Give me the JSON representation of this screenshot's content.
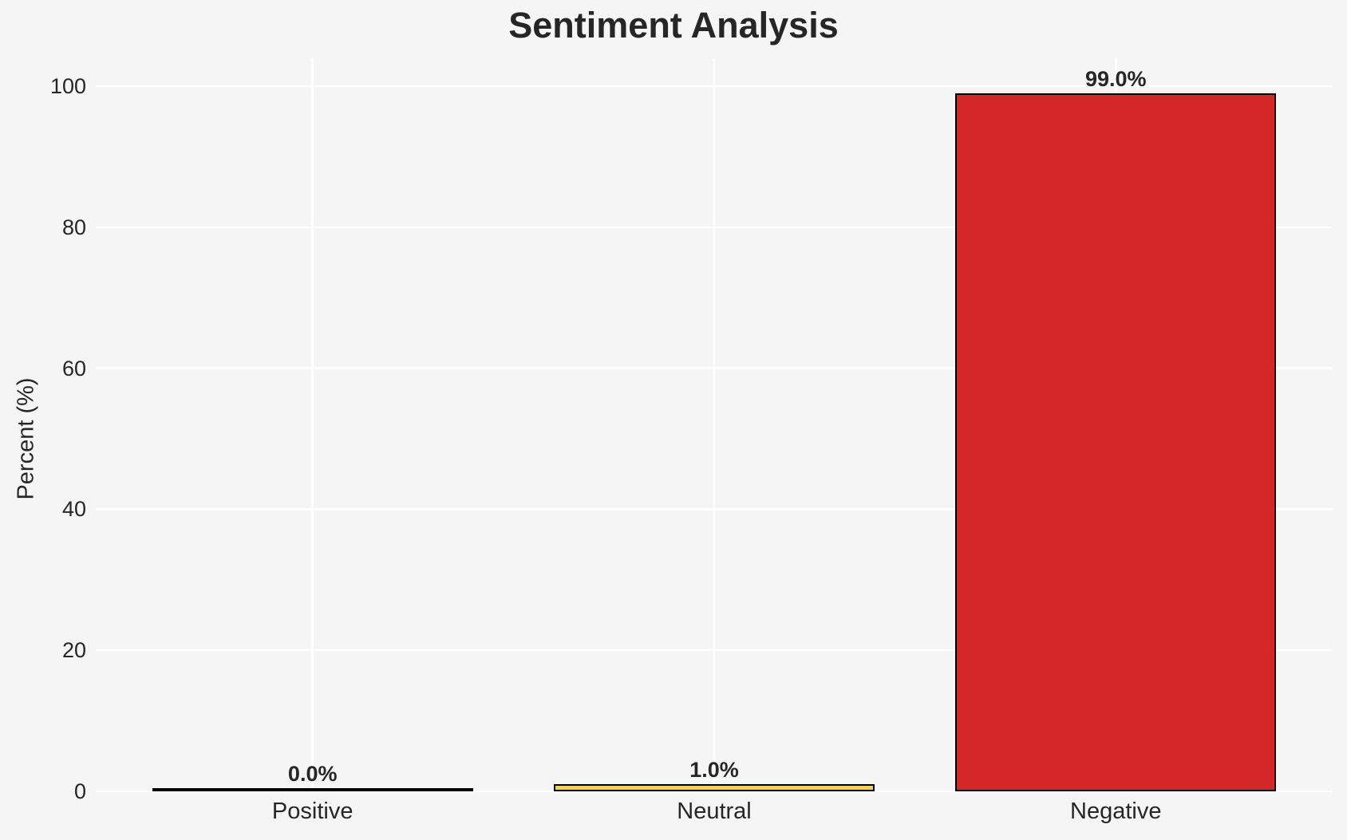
{
  "title": "Sentiment Analysis",
  "chart_data": {
    "type": "bar",
    "title": "Sentiment Analysis",
    "xlabel": "",
    "ylabel": "Percent (%)",
    "categories": [
      "Positive",
      "Neutral",
      "Negative"
    ],
    "values": [
      0.0,
      1.0,
      99.0
    ],
    "bar_labels": [
      "0.0%",
      "1.0%",
      "99.0%"
    ],
    "bar_colors": [
      "#2ca02c",
      "#fbd33b",
      "#d62728"
    ],
    "bar_edge_color": "#000000",
    "yticks": [
      0,
      20,
      40,
      60,
      80,
      100
    ],
    "ylim": [
      0,
      104
    ],
    "grid": "on",
    "legend": "none",
    "colors": {
      "background": "#f5f5f5",
      "gridline": "#ffffff",
      "text": "#262626"
    }
  }
}
